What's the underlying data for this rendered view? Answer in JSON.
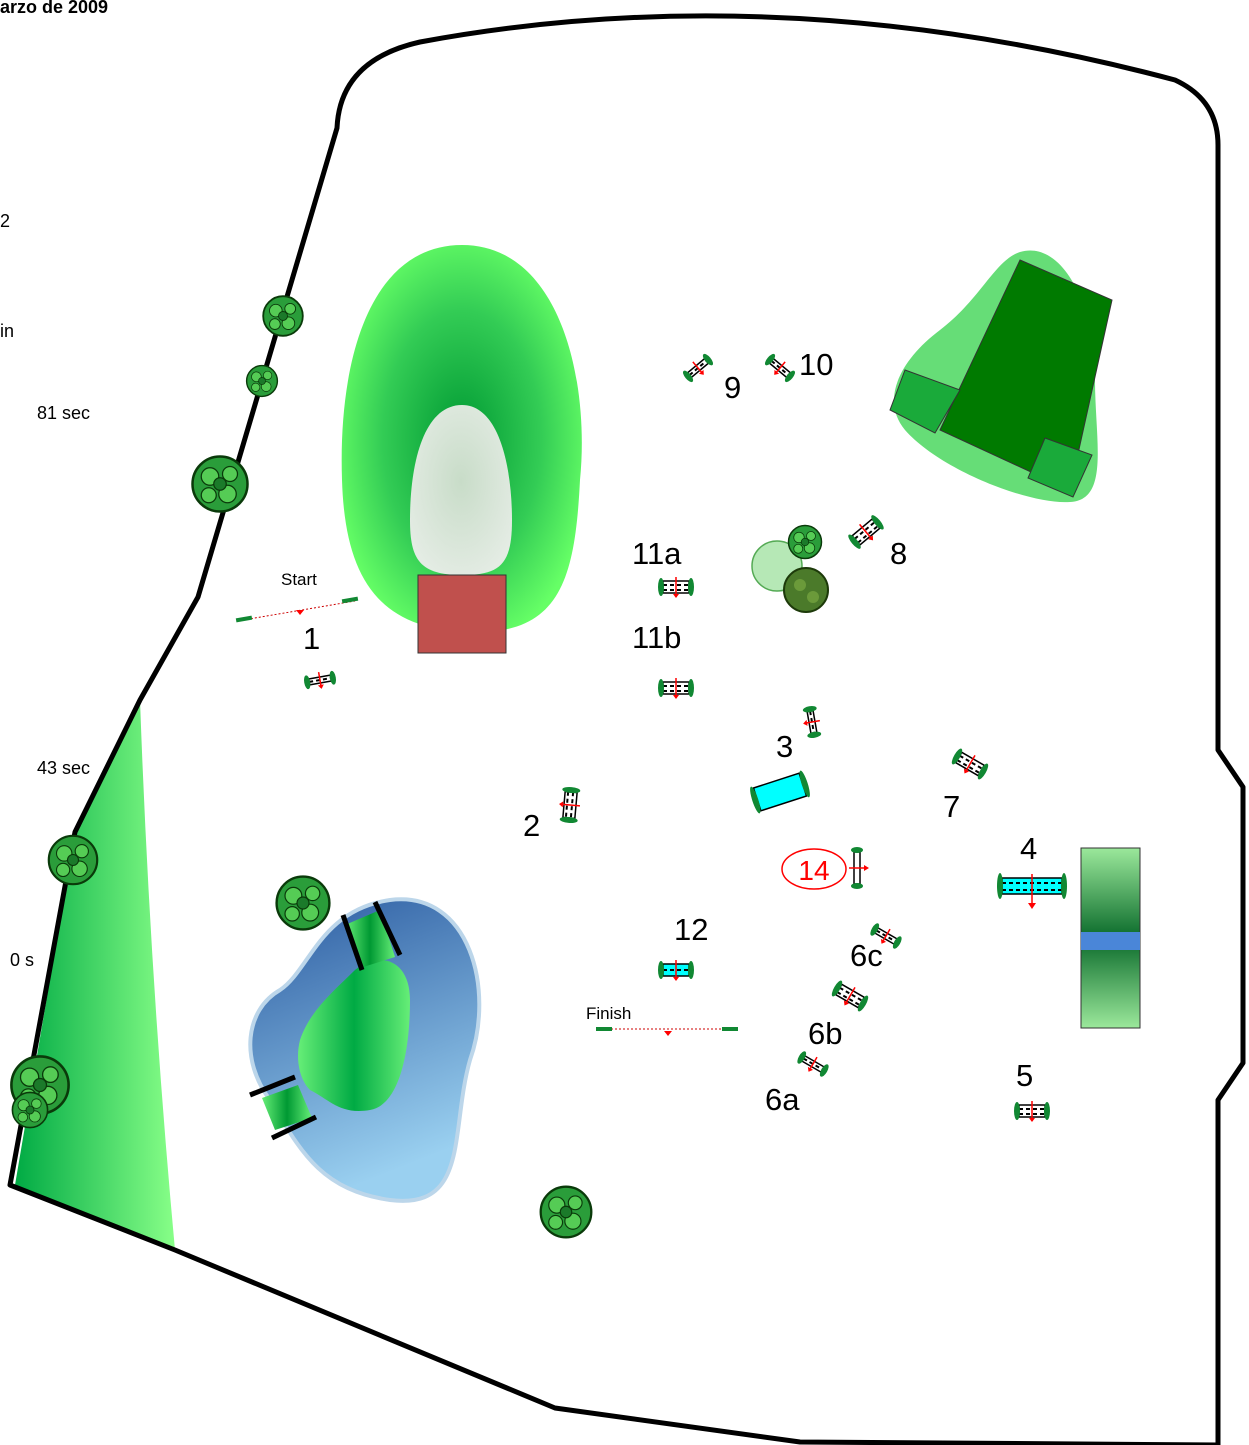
{
  "header": {
    "date_fragment": "arzo de 2009"
  },
  "side_texts": [
    "2",
    "in",
    "81  sec",
    "43  sec",
    "0  s"
  ],
  "markers": {
    "start": "Start",
    "finish": "Finish",
    "j1": "1",
    "j2": "2",
    "j3": "3",
    "j4": "4",
    "j5": "5",
    "j6a": "6a",
    "j6b": "6b",
    "j6c": "6c",
    "j7": "7",
    "j8": "8",
    "j9": "9",
    "j10": "10",
    "j11a": "11a",
    "j11b": "11b",
    "j12": "12",
    "j14": "14"
  },
  "colors": {
    "arena_border": "#000000",
    "grass_light": "#66ff66",
    "grass_dark": "#009933",
    "pond_blue": "#3366aa",
    "pond_light": "#99ccee",
    "building": "#c0504d",
    "water_jump": "#00ffff",
    "highlight_red": "#ff0000"
  }
}
